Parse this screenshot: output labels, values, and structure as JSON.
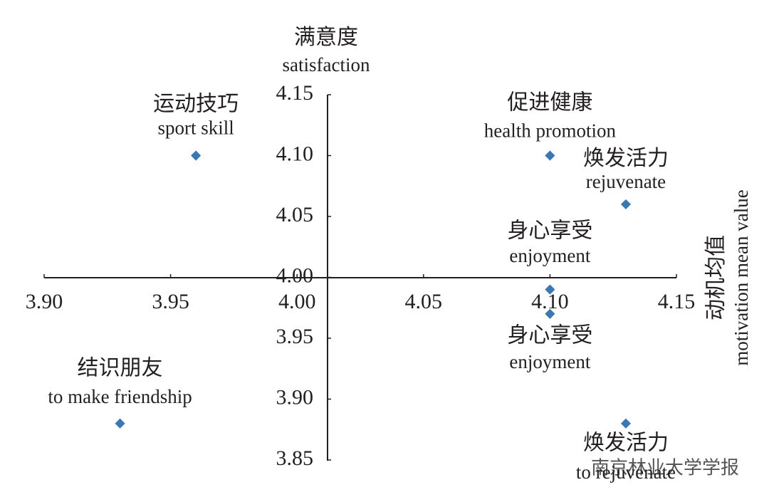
{
  "chart_data": {
    "type": "scatter",
    "title": "满意度",
    "subtitle": "satisfaction",
    "y_label": "动机均值",
    "y_label_en": "motivation mean value",
    "watermark": "南京林业大学学报",
    "color": "#3a78b4",
    "xlim": [
      3.9,
      4.15
    ],
    "xticks": [
      {
        "value": 3.9,
        "label": "3.90"
      },
      {
        "value": 3.95,
        "label": "3.95"
      },
      {
        "value": 4.0,
        "label": "4.00"
      },
      {
        "value": 4.05,
        "label": "4.05"
      },
      {
        "value": 4.1,
        "label": "4.10"
      },
      {
        "value": 4.15,
        "label": "4.15"
      }
    ],
    "ylim": [
      3.85,
      4.15
    ],
    "yticks": [
      {
        "value": 3.85,
        "label": "3.85"
      },
      {
        "value": 3.9,
        "label": "3.90"
      },
      {
        "value": 3.95,
        "label": "3.95"
      },
      {
        "value": 4.0,
        "label": "4.00"
      },
      {
        "value": 4.05,
        "label": "4.05"
      },
      {
        "value": 4.1,
        "label": "4.10"
      },
      {
        "value": 4.15,
        "label": "4.15"
      }
    ],
    "x": [
      3.96,
      4.1,
      4.13,
      4.1,
      4.1,
      3.93,
      4.13
    ],
    "values": [
      4.1,
      4.1,
      4.06,
      3.99,
      3.97,
      3.88,
      3.88
    ],
    "point_labels": [
      {
        "zh": "运动技巧",
        "en": "sport skill"
      },
      {
        "zh": "促进健康",
        "en": "health promotion"
      },
      {
        "zh": "焕发活力",
        "en": "rejuvenate"
      },
      {
        "zh": "身心享受",
        "en": "enjoyment"
      },
      {
        "zh": "身心享受",
        "en": "enjoyment"
      },
      {
        "zh": "结识朋友",
        "en": "to make friendship"
      },
      {
        "zh": "焕发活力",
        "en": "to rejuvenate"
      }
    ]
  }
}
